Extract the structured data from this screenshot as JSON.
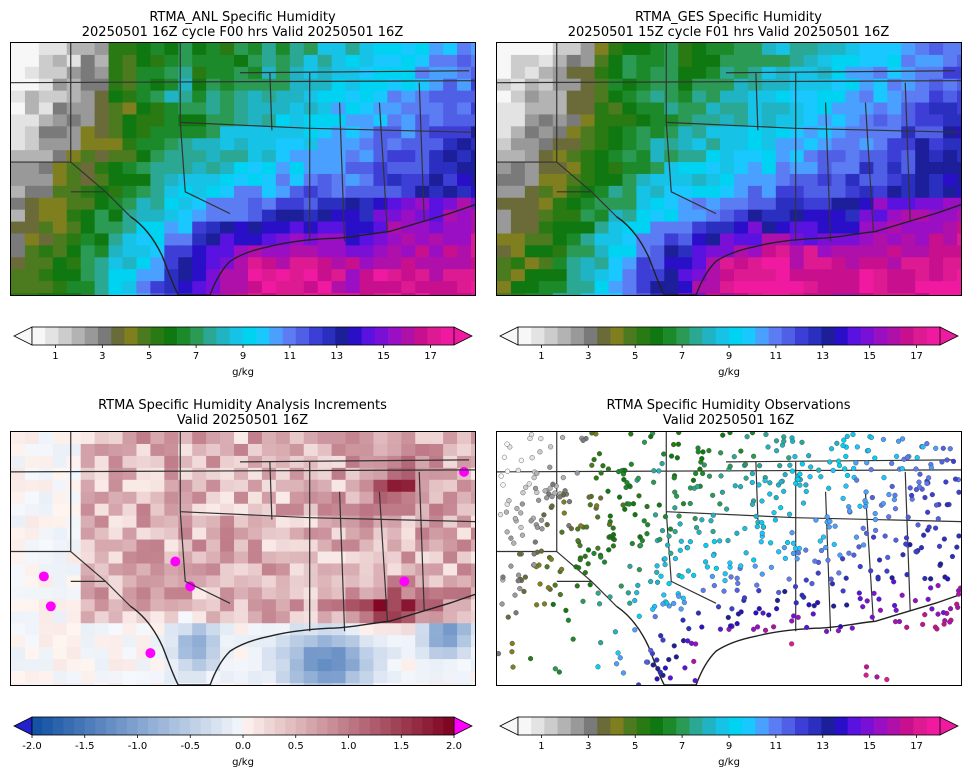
{
  "panels": [
    {
      "id": "anl",
      "title_line1": "RTMA_ANL Specific Humidity",
      "title_line2": "20250501 16Z cycle F00 hrs Valid 20250501 16Z",
      "type": "filled-field",
      "colorbar": "humidity"
    },
    {
      "id": "ges",
      "title_line1": "RTMA_GES Specific Humidity",
      "title_line2": "20250501 15Z cycle F01 hrs Valid 20250501 16Z",
      "type": "filled-field",
      "colorbar": "humidity"
    },
    {
      "id": "inc",
      "title_line1": "RTMA Specific Humidity Analysis Increments",
      "title_line2": "Valid 20250501 16Z",
      "type": "increment-field",
      "colorbar": "increment"
    },
    {
      "id": "obs",
      "title_line1": "RTMA Specific Humidity Observations",
      "title_line2": "Valid 20250501 16Z",
      "type": "station-points",
      "colorbar": "humidity"
    }
  ],
  "colorbars": {
    "humidity": {
      "unit": "g/kg",
      "ticks": [
        "1",
        "3",
        "5",
        "7",
        "9",
        "11",
        "13",
        "15",
        "17"
      ],
      "min": 0,
      "max": 18,
      "tick_values": [
        1,
        3,
        5,
        7,
        9,
        11,
        13,
        15,
        17
      ],
      "colors": [
        "#f7f7f7",
        "#e3e3e3",
        "#cccccc",
        "#b3b3b3",
        "#999999",
        "#7a7a7a",
        "#6b6b3a",
        "#7f7f1f",
        "#4c7a1e",
        "#2a7a14",
        "#107810",
        "#1c8a2a",
        "#2b9a54",
        "#2aa894",
        "#1fb3c4",
        "#16c2e6",
        "#00d2f2",
        "#18c8ff",
        "#4aa0ff",
        "#5b7cf2",
        "#4f60e6",
        "#3d3ed6",
        "#2b2fbf",
        "#1c1f99",
        "#2a0fc8",
        "#5a12e0",
        "#7a10d6",
        "#9a0fc4",
        "#b010aa",
        "#c8108e",
        "#dd1a92",
        "#f01aa0"
      ]
    },
    "increment": {
      "unit": "g/kg",
      "ticks": [
        "-2.0",
        "-1.5",
        "-1.0",
        "-0.5",
        "0.0",
        "0.5",
        "1.0",
        "1.5",
        "2.0"
      ],
      "min": -2.0,
      "max": 2.0,
      "tick_values": [
        -2.0,
        -1.5,
        -1.0,
        -0.5,
        0.0,
        0.5,
        1.0,
        1.5,
        2.0
      ],
      "under_color": "#2222cc",
      "over_color": "#ff00ff"
    }
  }
}
